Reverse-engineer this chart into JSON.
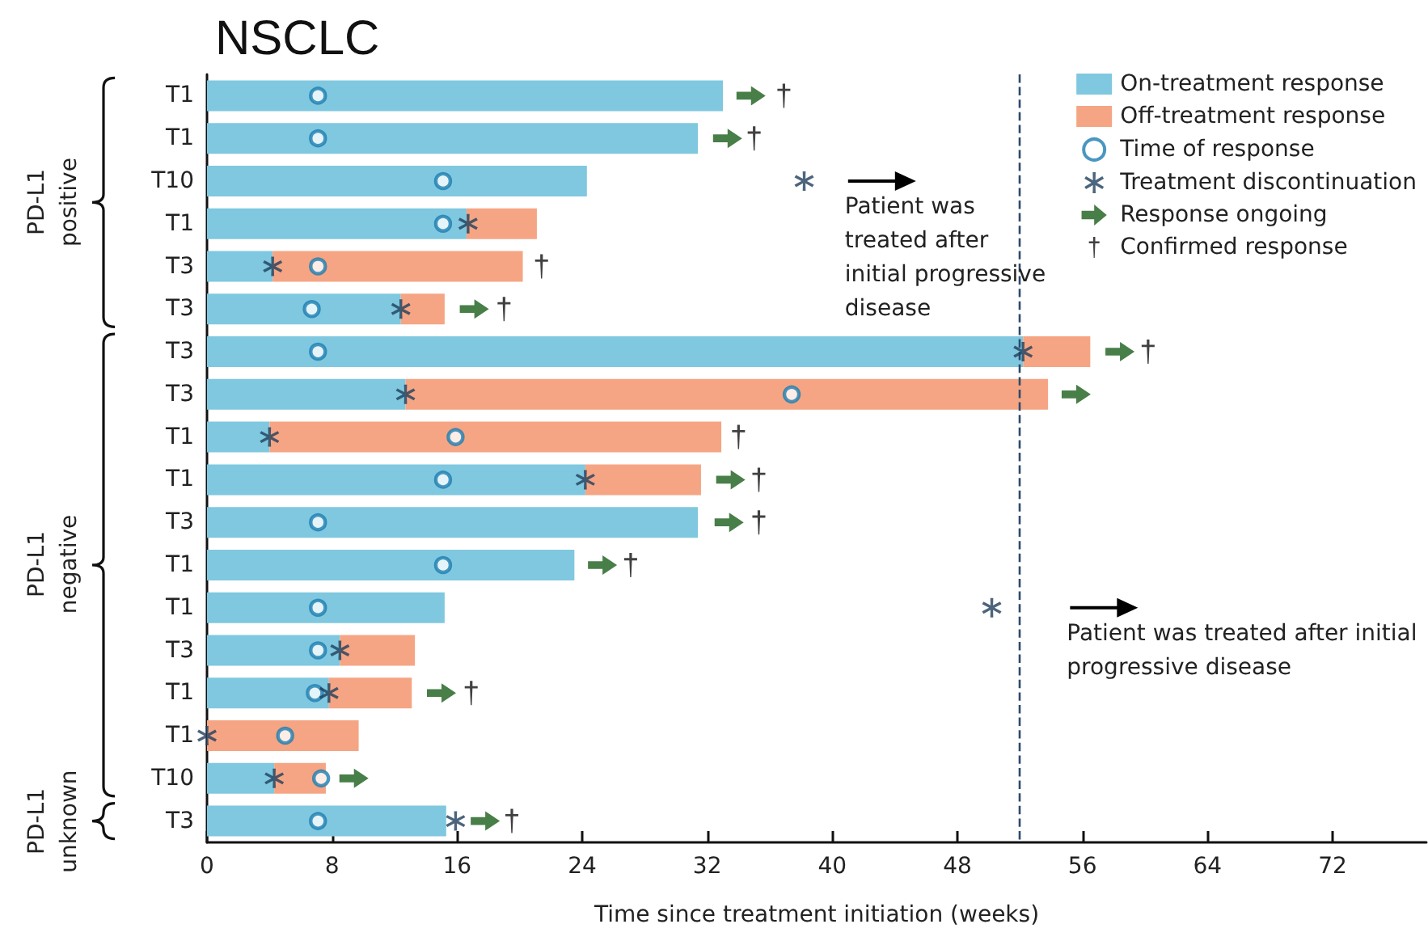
{
  "chart_data": {
    "type": "bar",
    "orientation": "horizontal",
    "stacked": true,
    "title": "NSCLC",
    "xlabel": "Time since treatment initiation (weeks)",
    "categories": [
      "T1",
      "T1",
      "T10",
      "T1",
      "T3",
      "T3",
      "T3",
      "T3",
      "T1",
      "T1",
      "T3",
      "T1",
      "T1",
      "T3",
      "T1",
      "T1",
      "T10",
      "T3"
    ],
    "xlim": [
      0,
      78
    ],
    "xticks": [
      0,
      8,
      16,
      24,
      32,
      40,
      48,
      56,
      64,
      72
    ],
    "grid": false,
    "legend": "top right",
    "series": [
      {
        "name": "On-treatment response",
        "type": "bar",
        "color": "#7fc8df",
        "values": [
          33.0,
          31.4,
          24.3,
          16.6,
          4.2,
          12.4,
          52.2,
          12.7,
          4.0,
          24.2,
          31.4,
          23.5,
          15.2,
          8.5,
          7.8,
          0,
          4.3,
          15.3
        ]
      },
      {
        "name": "Off-treatment response",
        "type": "bar",
        "color": "#f5a584",
        "values": [
          null,
          null,
          null,
          4.5,
          16.0,
          2.8,
          4.3,
          41.1,
          28.9,
          7.4,
          null,
          null,
          null,
          4.8,
          5.3,
          9.7,
          3.3,
          null
        ]
      },
      {
        "name": "Time of response",
        "type": "scatter",
        "marker": "circle",
        "color": "#1b7db0",
        "values": [
          7.1,
          7.1,
          15.1,
          15.1,
          7.1,
          6.7,
          7.1,
          37.4,
          15.9,
          15.1,
          7.1,
          15.1,
          7.1,
          7.1,
          6.9,
          5.0,
          7.3,
          7.1
        ]
      },
      {
        "name": "Treatment discontinuation",
        "type": "scatter",
        "marker": "star",
        "color": "#1f3f5b",
        "values": [
          null,
          null,
          38.2,
          16.7,
          4.2,
          12.4,
          52.2,
          12.7,
          4.0,
          24.2,
          null,
          null,
          50.2,
          8.5,
          7.8,
          0,
          4.3,
          15.9
        ]
      },
      {
        "name": "Response ongoing",
        "type": "scatter",
        "marker": "triangle",
        "color": "#1a5e1a",
        "values": [
          34.8,
          33.3,
          null,
          null,
          null,
          17.1,
          58.4,
          55.6,
          null,
          33.5,
          33.4,
          25.3,
          null,
          null,
          15.0,
          null,
          9.4,
          17.8
        ]
      },
      {
        "name": "Confirmed response",
        "type": "scatter",
        "marker": "cross",
        "color": "#111111",
        "values": [
          36.9,
          35.0,
          null,
          null,
          21.4,
          19.0,
          60.2,
          null,
          34.0,
          35.3,
          35.3,
          27.1,
          null,
          null,
          16.9,
          null,
          null,
          19.5
        ]
      }
    ],
    "ref_lines": [
      {
        "axis": "x",
        "value": 52,
        "color": "#2d4a6b",
        "line_style": "dashed"
      }
    ],
    "annotations": [
      "Patient was treated after initial progressive disease",
      "Patient was treated after initial progressive disease",
      "PD-L1 positive",
      "PD-L1 negative",
      "PD-L1 unknown"
    ]
  }
}
